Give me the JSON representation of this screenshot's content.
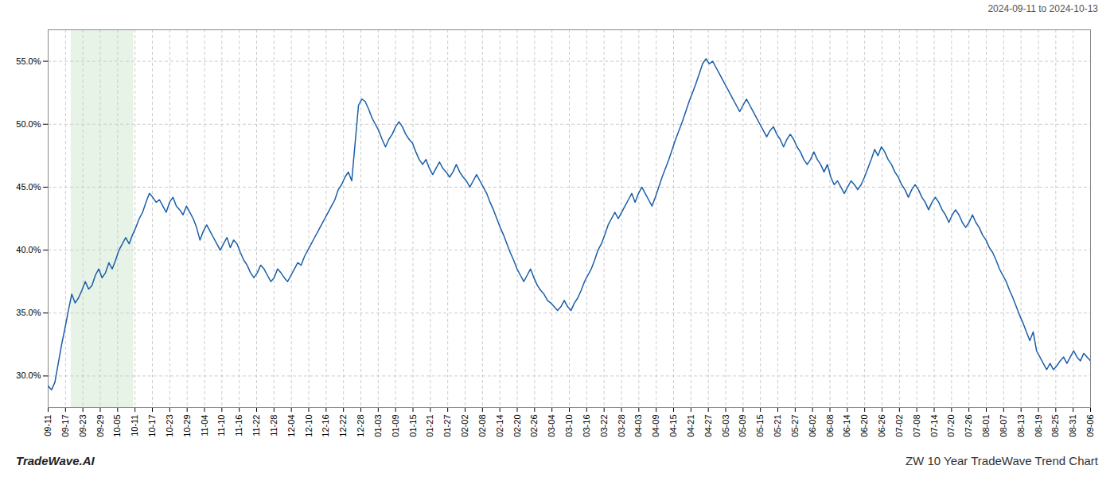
{
  "chart_data": {
    "type": "line",
    "title": "ZW 10 Year TradeWave Trend Chart",
    "subtitle": "2024-09-11 to 2024-10-13",
    "annotations": [
      "TradeWave.AI"
    ],
    "color": "#1a5fa8",
    "grid": true,
    "shaded_range": [
      6.798,
      25.338
    ],
    "shade_color": "#d6ead6",
    "xlim": [
      0,
      309
    ],
    "xticks": [
      {
        "value": 0,
        "label": "09-11"
      },
      {
        "value": 5.15,
        "label": "09-17"
      },
      {
        "value": 10.3,
        "label": "09-23"
      },
      {
        "value": 15.45,
        "label": "09-29"
      },
      {
        "value": 20.6,
        "label": "10-05"
      },
      {
        "value": 25.75,
        "label": "10-11"
      },
      {
        "value": 30.9,
        "label": "10-17"
      },
      {
        "value": 36.05,
        "label": "10-23"
      },
      {
        "value": 41.2,
        "label": "10-29"
      },
      {
        "value": 46.35,
        "label": "11-04"
      },
      {
        "value": 51.5,
        "label": "11-10"
      },
      {
        "value": 56.65,
        "label": "11-16"
      },
      {
        "value": 61.8,
        "label": "11-22"
      },
      {
        "value": 66.95,
        "label": "11-28"
      },
      {
        "value": 72.1,
        "label": "12-04"
      },
      {
        "value": 77.25,
        "label": "12-10"
      },
      {
        "value": 82.4,
        "label": "12-16"
      },
      {
        "value": 87.55,
        "label": "12-22"
      },
      {
        "value": 92.7,
        "label": "12-28"
      },
      {
        "value": 97.85,
        "label": "01-03"
      },
      {
        "value": 103,
        "label": "01-09"
      },
      {
        "value": 108.15,
        "label": "01-15"
      },
      {
        "value": 113.3,
        "label": "01-21"
      },
      {
        "value": 118.45,
        "label": "01-27"
      },
      {
        "value": 123.6,
        "label": "02-02"
      },
      {
        "value": 128.75,
        "label": "02-08"
      },
      {
        "value": 133.9,
        "label": "02-14"
      },
      {
        "value": 139.05,
        "label": "02-20"
      },
      {
        "value": 144.2,
        "label": "02-26"
      },
      {
        "value": 149.35,
        "label": "03-04"
      },
      {
        "value": 154.5,
        "label": "03-10"
      },
      {
        "value": 159.65,
        "label": "03-16"
      },
      {
        "value": 164.8,
        "label": "03-22"
      },
      {
        "value": 169.95,
        "label": "03-28"
      },
      {
        "value": 175.1,
        "label": "04-03"
      },
      {
        "value": 180.25,
        "label": "04-09"
      },
      {
        "value": 185.4,
        "label": "04-15"
      },
      {
        "value": 190.55,
        "label": "04-21"
      },
      {
        "value": 195.7,
        "label": "04-27"
      },
      {
        "value": 200.85,
        "label": "05-03"
      },
      {
        "value": 206,
        "label": "05-09"
      },
      {
        "value": 211.15,
        "label": "05-15"
      },
      {
        "value": 216.3,
        "label": "05-21"
      },
      {
        "value": 221.45,
        "label": "05-27"
      },
      {
        "value": 226.6,
        "label": "06-02"
      },
      {
        "value": 231.75,
        "label": "06-08"
      },
      {
        "value": 236.9,
        "label": "06-14"
      },
      {
        "value": 242.05,
        "label": "06-20"
      },
      {
        "value": 247.2,
        "label": "06-26"
      },
      {
        "value": 252.35,
        "label": "07-02"
      },
      {
        "value": 257.5,
        "label": "07-08"
      },
      {
        "value": 262.65,
        "label": "07-14"
      },
      {
        "value": 267.8,
        "label": "07-20"
      },
      {
        "value": 272.95,
        "label": "07-26"
      },
      {
        "value": 278.1,
        "label": "08-01"
      },
      {
        "value": 283.25,
        "label": "08-07"
      },
      {
        "value": 288.4,
        "label": "08-13"
      },
      {
        "value": 293.55,
        "label": "08-19"
      },
      {
        "value": 298.7,
        "label": "08-25"
      },
      {
        "value": 303.85,
        "label": "08-31"
      },
      {
        "value": 309,
        "label": "09-06"
      }
    ],
    "ylim": [
      27.5,
      57.5
    ],
    "yticks": [
      {
        "value": 30.0,
        "label": "30.0%"
      },
      {
        "value": 35.0,
        "label": "35.0%"
      },
      {
        "value": 40.0,
        "label": "40.0%"
      },
      {
        "value": 45.0,
        "label": "45.0%"
      },
      {
        "value": 50.0,
        "label": "50.0%"
      },
      {
        "value": 55.0,
        "label": "55.0%"
      }
    ],
    "x": [
      0,
      1,
      2,
      3,
      4,
      5,
      6,
      7,
      8,
      9,
      10,
      11,
      12,
      13,
      14,
      15,
      16,
      17,
      18,
      19,
      20,
      21,
      22,
      23,
      24,
      25,
      26,
      27,
      28,
      29,
      30,
      31,
      32,
      33,
      34,
      35,
      36,
      37,
      38,
      39,
      40,
      41,
      42,
      43,
      44,
      45,
      46,
      47,
      48,
      49,
      50,
      51,
      52,
      53,
      54,
      55,
      56,
      57,
      58,
      59,
      60,
      61,
      62,
      63,
      64,
      65,
      66,
      67,
      68,
      69,
      70,
      71,
      72,
      73,
      74,
      75,
      76,
      77,
      78,
      79,
      80,
      81,
      82,
      83,
      84,
      85,
      86,
      87,
      88,
      89,
      90,
      91,
      92,
      93,
      94,
      95,
      96,
      97,
      98,
      99,
      100,
      101,
      102,
      103,
      104,
      105,
      106,
      107,
      108,
      109,
      110,
      111,
      112,
      113,
      114,
      115,
      116,
      117,
      118,
      119,
      120,
      121,
      122,
      123,
      124,
      125,
      126,
      127,
      128,
      129,
      130,
      131,
      132,
      133,
      134,
      135,
      136,
      137,
      138,
      139,
      140,
      141,
      142,
      143,
      144,
      145,
      146,
      147,
      148,
      149,
      150,
      151,
      152,
      153,
      154,
      155,
      156,
      157,
      158,
      159,
      160,
      161,
      162,
      163,
      164,
      165,
      166,
      167,
      168,
      169,
      170,
      171,
      172,
      173,
      174,
      175,
      176,
      177,
      178,
      179,
      180,
      181,
      182,
      183,
      184,
      185,
      186,
      187,
      188,
      189,
      190,
      191,
      192,
      193,
      194,
      195,
      196,
      197,
      198,
      199,
      200,
      201,
      202,
      203,
      204,
      205,
      206,
      207,
      208,
      209,
      210,
      211,
      212,
      213,
      214,
      215,
      216,
      217,
      218,
      219,
      220,
      221,
      222,
      223,
      224,
      225,
      226,
      227,
      228,
      229,
      230,
      231,
      232,
      233,
      234,
      235,
      236,
      237,
      238,
      239,
      240,
      241,
      242,
      243,
      244,
      245,
      246,
      247,
      248,
      249,
      250,
      251,
      252,
      253,
      254,
      255,
      256,
      257,
      258,
      259,
      260,
      261,
      262,
      263,
      264,
      265,
      266,
      267,
      268,
      269,
      270,
      271,
      272,
      273,
      274,
      275,
      276,
      277,
      278,
      279,
      280,
      281,
      282,
      283,
      284,
      285,
      286,
      287,
      288,
      289,
      290,
      291,
      292,
      293,
      294,
      295,
      296,
      297,
      298,
      299,
      300,
      301,
      302,
      303,
      304,
      305,
      306,
      307,
      308,
      309
    ],
    "values": [
      29.2,
      28.9,
      29.5,
      31.0,
      32.5,
      33.8,
      35.2,
      36.5,
      35.8,
      36.2,
      36.8,
      37.5,
      36.9,
      37.2,
      38.0,
      38.5,
      37.8,
      38.2,
      39.0,
      38.5,
      39.2,
      40.0,
      40.5,
      41.0,
      40.5,
      41.2,
      41.8,
      42.5,
      43.0,
      43.8,
      44.5,
      44.2,
      43.8,
      44.0,
      43.5,
      43.0,
      43.8,
      44.2,
      43.5,
      43.2,
      42.8,
      43.5,
      43.0,
      42.5,
      41.8,
      40.8,
      41.5,
      42.0,
      41.5,
      41.0,
      40.5,
      40.0,
      40.5,
      41.0,
      40.2,
      40.8,
      40.5,
      39.8,
      39.2,
      38.8,
      38.2,
      37.8,
      38.2,
      38.8,
      38.5,
      38.0,
      37.5,
      37.8,
      38.5,
      38.2,
      37.8,
      37.5,
      38.0,
      38.5,
      39.0,
      38.8,
      39.5,
      40.0,
      40.5,
      41.0,
      41.5,
      42.0,
      42.5,
      43.0,
      43.5,
      44.0,
      44.8,
      45.2,
      45.8,
      46.2,
      45.5,
      48.5,
      51.5,
      52.0,
      51.8,
      51.2,
      50.5,
      50.0,
      49.5,
      48.8,
      48.2,
      48.8,
      49.2,
      49.8,
      50.2,
      49.8,
      49.2,
      48.8,
      48.5,
      47.8,
      47.2,
      46.8,
      47.2,
      46.5,
      46.0,
      46.5,
      47.0,
      46.5,
      46.2,
      45.8,
      46.2,
      46.8,
      46.2,
      45.8,
      45.5,
      45.0,
      45.5,
      46.0,
      45.5,
      45.0,
      44.5,
      43.8,
      43.2,
      42.5,
      41.8,
      41.2,
      40.5,
      39.8,
      39.2,
      38.5,
      38.0,
      37.5,
      38.0,
      38.5,
      37.8,
      37.2,
      36.8,
      36.5,
      36.0,
      35.8,
      35.5,
      35.2,
      35.5,
      36.0,
      35.5,
      35.2,
      35.8,
      36.2,
      36.8,
      37.5,
      38.0,
      38.5,
      39.2,
      40.0,
      40.5,
      41.2,
      42.0,
      42.5,
      43.0,
      42.5,
      43.0,
      43.5,
      44.0,
      44.5,
      43.8,
      44.5,
      45.0,
      44.5,
      44.0,
      43.5,
      44.2,
      45.0,
      45.8,
      46.5,
      47.2,
      48.0,
      48.8,
      49.5,
      50.2,
      51.0,
      51.8,
      52.5,
      53.2,
      54.0,
      54.8,
      55.2,
      54.8,
      55.0,
      54.5,
      54.0,
      53.5,
      53.0,
      52.5,
      52.0,
      51.5,
      51.0,
      51.5,
      52.0,
      51.5,
      51.0,
      50.5,
      50.0,
      49.5,
      49.0,
      49.5,
      49.8,
      49.2,
      48.8,
      48.2,
      48.8,
      49.2,
      48.8,
      48.2,
      47.8,
      47.2,
      46.8,
      47.2,
      47.8,
      47.2,
      46.8,
      46.2,
      46.8,
      45.8,
      45.2,
      45.5,
      45.0,
      44.5,
      45.0,
      45.5,
      45.2,
      44.8,
      45.2,
      45.8,
      46.5,
      47.2,
      48.0,
      47.5,
      48.2,
      47.8,
      47.2,
      46.8,
      46.2,
      45.8,
      45.2,
      44.8,
      44.2,
      44.8,
      45.2,
      44.8,
      44.2,
      43.8,
      43.2,
      43.8,
      44.2,
      43.8,
      43.2,
      42.8,
      42.2,
      42.8,
      43.2,
      42.8,
      42.2,
      41.8,
      42.2,
      42.8,
      42.2,
      41.8,
      41.2,
      40.8,
      40.2,
      39.8,
      39.2,
      38.5,
      38.0,
      37.5,
      36.8,
      36.2,
      35.5,
      34.8,
      34.2,
      33.5,
      32.8,
      33.5,
      32.0,
      31.5,
      31.0,
      30.5,
      31.0,
      30.5,
      30.8,
      31.2,
      31.5,
      31.0,
      31.5,
      32.0,
      31.5,
      31.2,
      31.8,
      31.5,
      31.2
    ]
  }
}
